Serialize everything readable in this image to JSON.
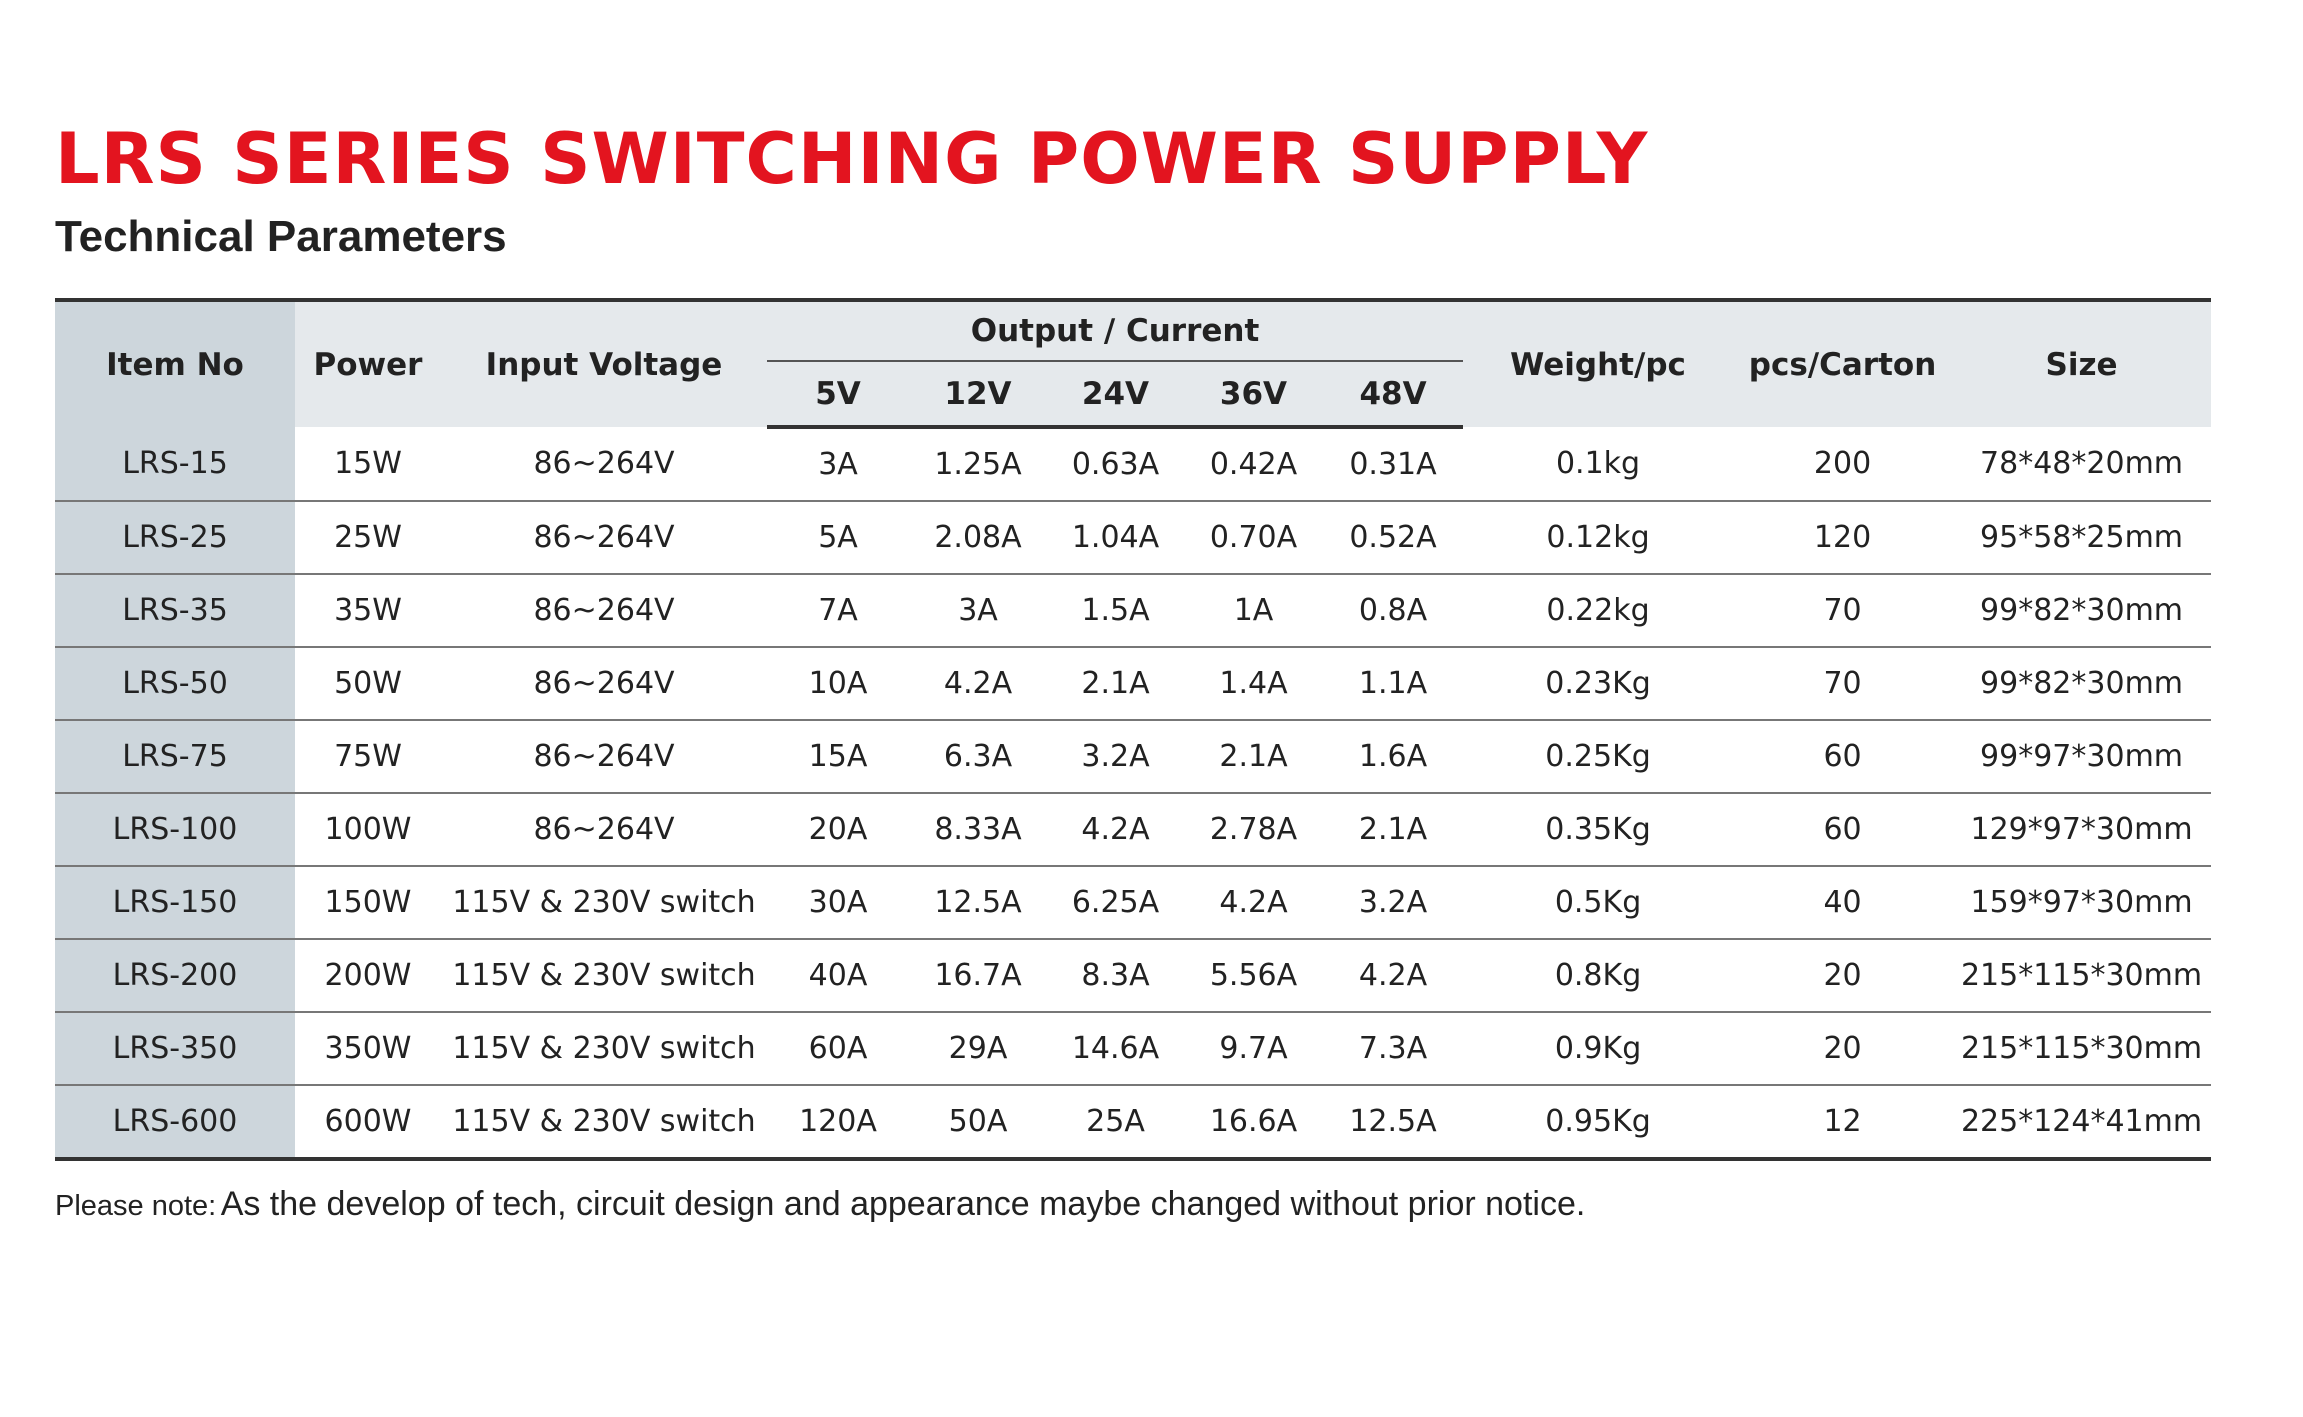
{
  "header": {
    "title": "LRS SERIES SWITCHING POWER SUPPLY",
    "subtitle": "Technical Parameters"
  },
  "table": {
    "columns": {
      "item_no": "Item No",
      "power": "Power",
      "input_voltage": "Input Voltage",
      "output_current": "Output / Current",
      "voltages": [
        "5V",
        "12V",
        "24V",
        "36V",
        "48V"
      ],
      "weight": "Weight/pc",
      "pcs": "pcs/Carton",
      "size": "Size"
    },
    "rows": [
      [
        "LRS-15",
        "15W",
        "86~264V",
        "3A",
        "1.25A",
        "0.63A",
        "0.42A",
        "0.31A",
        "0.1kg",
        "200",
        "78*48*20mm"
      ],
      [
        "LRS-25",
        "25W",
        "86~264V",
        "5A",
        "2.08A",
        "1.04A",
        "0.70A",
        "0.52A",
        "0.12kg",
        "120",
        "95*58*25mm"
      ],
      [
        "LRS-35",
        "35W",
        "86~264V",
        "7A",
        "3A",
        "1.5A",
        "1A",
        "0.8A",
        "0.22kg",
        "70",
        "99*82*30mm"
      ],
      [
        "LRS-50",
        "50W",
        "86~264V",
        "10A",
        "4.2A",
        "2.1A",
        "1.4A",
        "1.1A",
        "0.23Kg",
        "70",
        "99*82*30mm"
      ],
      [
        "LRS-75",
        "75W",
        "86~264V",
        "15A",
        "6.3A",
        "3.2A",
        "2.1A",
        "1.6A",
        "0.25Kg",
        "60",
        "99*97*30mm"
      ],
      [
        "LRS-100",
        "100W",
        "86~264V",
        "20A",
        "8.33A",
        "4.2A",
        "2.78A",
        "2.1A",
        "0.35Kg",
        "60",
        "129*97*30mm"
      ],
      [
        "LRS-150",
        "150W",
        "115V & 230V switch",
        "30A",
        "12.5A",
        "6.25A",
        "4.2A",
        "3.2A",
        "0.5Kg",
        "40",
        "159*97*30mm"
      ],
      [
        "LRS-200",
        "200W",
        "115V & 230V switch",
        "40A",
        "16.7A",
        "8.3A",
        "5.56A",
        "4.2A",
        "0.8Kg",
        "20",
        "215*115*30mm"
      ],
      [
        "LRS-350",
        "350W",
        "115V & 230V switch",
        "60A",
        "29A",
        "14.6A",
        "9.7A",
        "7.3A",
        "0.9Kg",
        "20",
        "215*115*30mm"
      ],
      [
        "LRS-600",
        "600W",
        "115V & 230V switch",
        "120A",
        "50A",
        "25A",
        "16.6A",
        "12.5A",
        "0.95Kg",
        "12",
        "225*124*41mm"
      ]
    ]
  },
  "note": {
    "label": "Please note:",
    "text": "As the develop of tech, circuit design and appearance maybe changed without prior notice."
  }
}
